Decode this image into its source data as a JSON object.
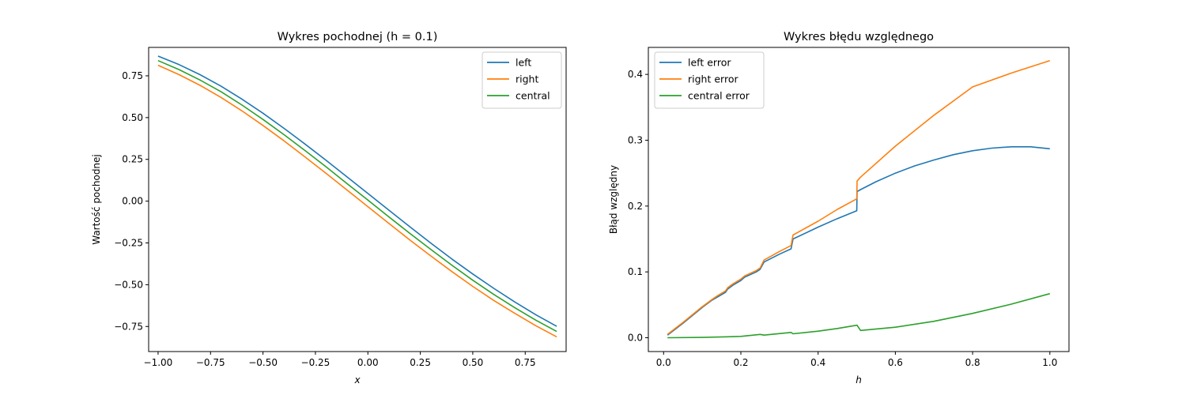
{
  "chart_data": [
    {
      "type": "line",
      "title": "Wykres pochodnej (h = 0.1)",
      "xlabel": "x",
      "ylabel": "Wartość pochodnej",
      "xlim": [
        -1.045,
        0.945
      ],
      "ylim": [
        -0.9,
        0.92
      ],
      "xticks": [
        -1.0,
        -0.75,
        -0.5,
        -0.25,
        0.0,
        0.25,
        0.5,
        0.75
      ],
      "xtick_labels": [
        "−1.00",
        "−0.75",
        "−0.50",
        "−0.25",
        "0.00",
        "0.25",
        "0.50",
        "0.75"
      ],
      "yticks": [
        -0.75,
        -0.5,
        -0.25,
        0.0,
        0.25,
        0.5,
        0.75
      ],
      "ytick_labels": [
        "−0.75",
        "−0.50",
        "−0.25",
        "0.00",
        "0.25",
        "0.50",
        "0.75"
      ],
      "grid": false,
      "legend": "upper right",
      "x": [
        -1.0,
        -0.9,
        -0.8,
        -0.7,
        -0.6,
        -0.5,
        -0.4,
        -0.3,
        -0.2,
        -0.1,
        0.0,
        0.1,
        0.2,
        0.3,
        0.4,
        0.5,
        0.6,
        0.7,
        0.8,
        0.9
      ],
      "series": [
        {
          "name": "left",
          "color": "#1f77b4",
          "values": [
            0.868,
            0.817,
            0.757,
            0.688,
            0.61,
            0.526,
            0.436,
            0.342,
            0.245,
            0.146,
            0.046,
            -0.054,
            -0.153,
            -0.251,
            -0.346,
            -0.436,
            -0.522,
            -0.603,
            -0.679,
            -0.749
          ]
        },
        {
          "name": "right",
          "color": "#ff7f0e",
          "values": [
            0.813,
            0.757,
            0.693,
            0.621,
            0.54,
            0.453,
            0.361,
            0.265,
            0.167,
            0.067,
            -0.033,
            -0.133,
            -0.232,
            -0.328,
            -0.421,
            -0.51,
            -0.594,
            -0.671,
            -0.745,
            -0.812
          ]
        },
        {
          "name": "central",
          "color": "#2ca02c",
          "values": [
            0.841,
            0.787,
            0.725,
            0.655,
            0.575,
            0.489,
            0.398,
            0.303,
            0.206,
            0.106,
            0.006,
            -0.094,
            -0.193,
            -0.289,
            -0.383,
            -0.473,
            -0.558,
            -0.637,
            -0.712,
            -0.78
          ]
        }
      ]
    },
    {
      "type": "line",
      "title": "Wykres błędu względnego",
      "xlabel": "h",
      "ylabel": "Błąd względny",
      "xlim": [
        -0.0395,
        1.0495
      ],
      "ylim": [
        -0.021,
        0.441
      ],
      "xticks": [
        0.0,
        0.2,
        0.4,
        0.6,
        0.8,
        1.0
      ],
      "xtick_labels": [
        "0.0",
        "0.2",
        "0.4",
        "0.6",
        "0.8",
        "1.0"
      ],
      "yticks": [
        0.0,
        0.1,
        0.2,
        0.3,
        0.4
      ],
      "ytick_labels": [
        "0.0",
        "0.1",
        "0.2",
        "0.3",
        "0.4"
      ],
      "grid": false,
      "legend": "upper left",
      "series": [
        {
          "name": "left error",
          "color": "#1f77b4",
          "x": [
            0.01,
            0.05,
            0.1,
            0.125,
            0.14,
            0.16,
            0.166,
            0.18,
            0.2,
            0.21,
            0.24,
            0.25,
            0.26,
            0.3,
            0.33,
            0.335,
            0.4,
            0.45,
            0.5,
            0.501,
            0.51,
            0.55,
            0.6,
            0.65,
            0.7,
            0.75,
            0.8,
            0.85,
            0.9,
            0.95,
            1.0
          ],
          "values": [
            0.004,
            0.022,
            0.046,
            0.057,
            0.062,
            0.069,
            0.074,
            0.08,
            0.087,
            0.092,
            0.1,
            0.104,
            0.115,
            0.127,
            0.135,
            0.15,
            0.168,
            0.181,
            0.193,
            0.222,
            0.225,
            0.237,
            0.25,
            0.261,
            0.27,
            0.278,
            0.284,
            0.288,
            0.29,
            0.29,
            0.287
          ]
        },
        {
          "name": "right error",
          "color": "#ff7f0e",
          "x": [
            0.01,
            0.05,
            0.1,
            0.125,
            0.14,
            0.16,
            0.166,
            0.18,
            0.2,
            0.21,
            0.24,
            0.25,
            0.26,
            0.3,
            0.33,
            0.335,
            0.4,
            0.45,
            0.5,
            0.501,
            0.51,
            0.6,
            0.7,
            0.8,
            0.9,
            1.0
          ],
          "values": [
            0.005,
            0.023,
            0.047,
            0.058,
            0.064,
            0.071,
            0.076,
            0.082,
            0.089,
            0.094,
            0.102,
            0.106,
            0.118,
            0.131,
            0.14,
            0.156,
            0.177,
            0.195,
            0.211,
            0.238,
            0.244,
            0.291,
            0.338,
            0.381,
            0.402,
            0.421
          ]
        },
        {
          "name": "central error",
          "color": "#2ca02c",
          "x": [
            0.01,
            0.1,
            0.166,
            0.2,
            0.25,
            0.26,
            0.33,
            0.335,
            0.4,
            0.45,
            0.5,
            0.501,
            0.51,
            0.6,
            0.7,
            0.8,
            0.9,
            1.0
          ],
          "values": [
            0.0,
            0.0005,
            0.0015,
            0.002,
            0.005,
            0.004,
            0.008,
            0.006,
            0.01,
            0.014,
            0.019,
            0.019,
            0.011,
            0.016,
            0.025,
            0.037,
            0.051,
            0.067
          ]
        }
      ]
    }
  ]
}
